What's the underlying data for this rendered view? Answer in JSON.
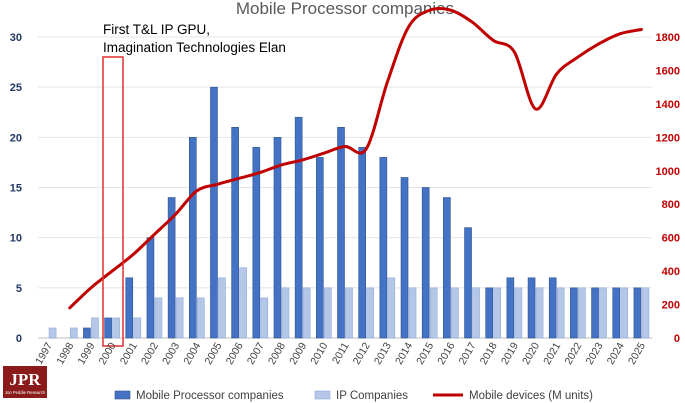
{
  "chart_data": {
    "type": "bar",
    "title": "Mobile Processor companies",
    "annotation": [
      "First T&L IP GPU,",
      "Imagination Technologies Elan"
    ],
    "categories": [
      "1997",
      "1998",
      "1999",
      "2000",
      "2001",
      "2002",
      "2003",
      "2004",
      "2005",
      "2006",
      "2007",
      "2008",
      "2009",
      "2010",
      "2011",
      "2012",
      "2013",
      "2014",
      "2015",
      "2016",
      "2017",
      "2018",
      "2019",
      "2020",
      "2021",
      "2022",
      "2023",
      "2024",
      "2025"
    ],
    "series": [
      {
        "name": "Mobile Processor companies",
        "type": "bar",
        "axis": "left",
        "color": "#4472c4",
        "values": [
          0,
          0,
          1,
          2,
          6,
          10,
          14,
          20,
          25,
          21,
          19,
          20,
          22,
          18,
          21,
          19,
          18,
          16,
          15,
          14,
          11,
          5,
          6,
          6,
          6,
          5,
          5,
          5,
          5
        ]
      },
      {
        "name": "IP Companies",
        "type": "bar",
        "axis": "left",
        "color": "#b4c7e7",
        "values": [
          1,
          1,
          2,
          2,
          2,
          4,
          4,
          4,
          6,
          7,
          4,
          5,
          5,
          5,
          5,
          5,
          6,
          5,
          5,
          5,
          5,
          5,
          5,
          5,
          5,
          5,
          5,
          5,
          5
        ]
      },
      {
        "name": "Mobile devices (M units)",
        "type": "line",
        "axis": "right",
        "color": "#c00000",
        "values": [
          null,
          180,
          300,
          400,
          500,
          620,
          740,
          880,
          920,
          955,
          990,
          1035,
          1065,
          1105,
          1145,
          1130,
          1530,
          1860,
          1960,
          1960,
          1890,
          1780,
          1710,
          1370,
          1580,
          1680,
          1760,
          1820,
          1845
        ]
      }
    ],
    "left_axis": {
      "ylim": [
        0,
        30
      ],
      "ticks": [
        "0",
        "5",
        "10",
        "15",
        "20",
        "25",
        "30"
      ]
    },
    "right_axis": {
      "ylim": [
        0,
        1800
      ],
      "ticks": [
        "0",
        "200",
        "400",
        "600",
        "800",
        "1000",
        "1200",
        "1400",
        "1600",
        "1800"
      ]
    },
    "highlight_category": "2000",
    "legend_position": "bottom"
  },
  "logo": {
    "text": "JPR",
    "subtext": "Jon Peddie Research"
  },
  "colors": {
    "bar": "#4472c4",
    "ip": "#b4c7e7",
    "line": "#c00000",
    "left_axis": "#1f3864",
    "right_axis": "#c00000"
  }
}
